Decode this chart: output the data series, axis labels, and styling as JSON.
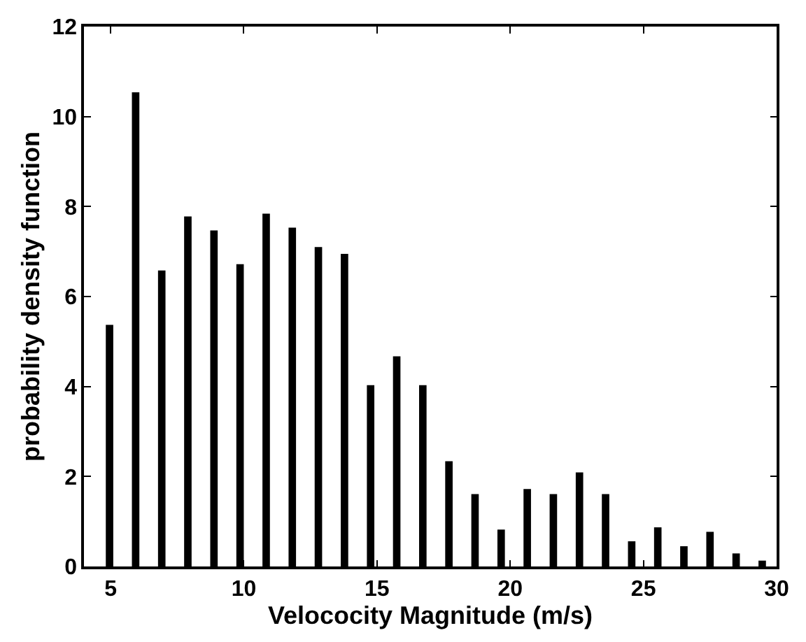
{
  "chart_data": {
    "type": "bar",
    "xlabel": "Velococity Magnitude (m/s)",
    "ylabel": "probability density function",
    "x": [
      4.96,
      5.94,
      6.92,
      7.9,
      8.88,
      9.86,
      10.84,
      11.82,
      12.8,
      13.78,
      14.76,
      15.74,
      16.72,
      17.7,
      18.68,
      19.66,
      20.64,
      21.62,
      22.6,
      23.58,
      24.56,
      25.54,
      26.52,
      27.5,
      28.48,
      29.46
    ],
    "values": [
      5.37,
      10.54,
      6.58,
      7.78,
      7.47,
      6.72,
      7.84,
      7.53,
      7.1,
      6.95,
      4.03,
      4.67,
      4.03,
      2.34,
      1.61,
      0.82,
      1.72,
      1.61,
      2.09,
      1.61,
      0.56,
      0.87,
      0.45,
      0.77,
      0.29,
      0.13
    ],
    "color": "#000000",
    "xlim": [
      4,
      30
    ],
    "xticks": [
      5,
      10,
      15,
      20,
      25,
      30
    ],
    "ylim": [
      0,
      12
    ],
    "yticks": [
      0,
      2,
      4,
      6,
      8,
      10,
      12
    ]
  }
}
